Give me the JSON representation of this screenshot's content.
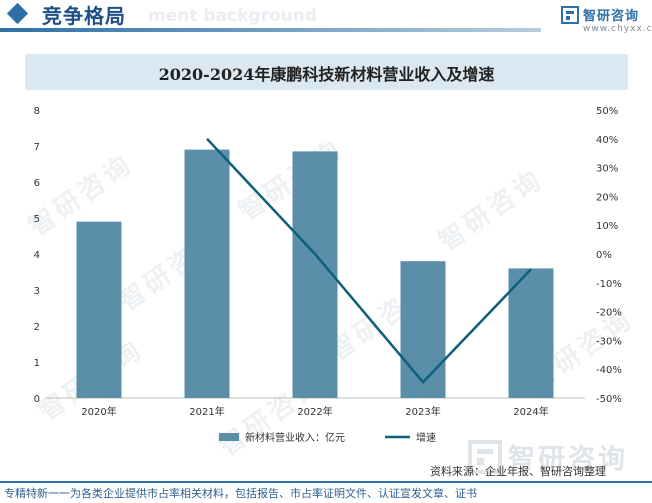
{
  "header": {
    "title": "竞争格局",
    "ghost_text": "ment background",
    "logo_name": "智研咨询",
    "logo_url": "www.chyxx.com"
  },
  "watermark": {
    "text": "智研咨询"
  },
  "colors": {
    "bar": "#5b8fa9",
    "line": "#0d5f7a",
    "accent": "#2d6fa6"
  },
  "chart_data": {
    "type": "bar+line",
    "title": "2020-2024年康鹏科技新材料营业收入及增速",
    "categories": [
      "2020年",
      "2021年",
      "2022年",
      "2023年",
      "2024年"
    ],
    "series": [
      {
        "name": "新材料营业收入：亿元",
        "type": "bar",
        "axis": "left",
        "values": [
          4.9,
          6.9,
          6.85,
          3.8,
          3.6
        ]
      },
      {
        "name": "增速",
        "type": "line",
        "axis": "right",
        "values": [
          null,
          40.0,
          0.0,
          -44.5,
          -5.3
        ]
      }
    ],
    "left_axis": {
      "min": 0,
      "max": 8,
      "ticks": [
        "0",
        "1",
        "2",
        "3",
        "4",
        "5",
        "6",
        "7",
        "8"
      ]
    },
    "right_axis": {
      "min": -50,
      "max": 50,
      "ticks": [
        "-50%",
        "-40%",
        "-30%",
        "-20%",
        "-10%",
        "0%",
        "10%",
        "20%",
        "30%",
        "40%",
        "50%"
      ]
    },
    "grid": false,
    "legend_position": "bottom"
  },
  "footer": {
    "source": "资料来源：企业年报、智研咨询整理",
    "tagline": "专精特新一一为各类企业提供市占率相关材料，包括报告、市占率证明文件、认证宣发文章、证书"
  }
}
